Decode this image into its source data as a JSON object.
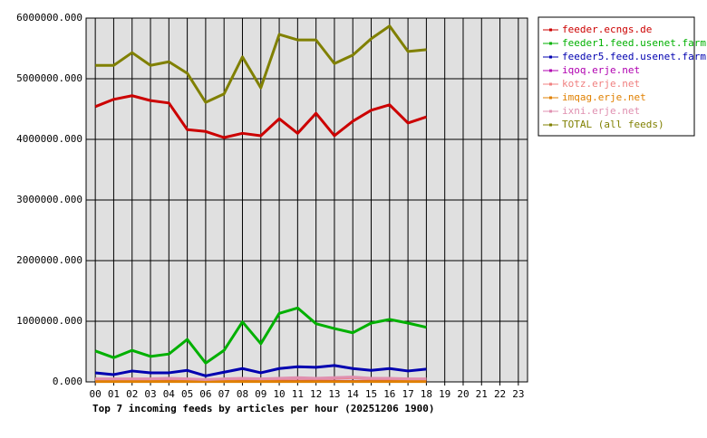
{
  "chart_data": {
    "type": "line",
    "title": "Top 7 incoming feeds by articles per hour (20251206 1900)",
    "categories": [
      "00",
      "01",
      "02",
      "03",
      "04",
      "05",
      "06",
      "07",
      "08",
      "09",
      "10",
      "11",
      "12",
      "13",
      "14",
      "15",
      "16",
      "17",
      "18",
      "19",
      "20",
      "21",
      "22",
      "23"
    ],
    "ylim": [
      0,
      6000000
    ],
    "yticks": [
      {
        "value": 0,
        "label": "0.000"
      },
      {
        "value": 1000000,
        "label": "1000000.000"
      },
      {
        "value": 2000000,
        "label": "2000000.000"
      },
      {
        "value": 3000000,
        "label": "3000000.000"
      },
      {
        "value": 4000000,
        "label": "4000000.000"
      },
      {
        "value": 5000000,
        "label": "5000000.000"
      },
      {
        "value": 6000000,
        "label": "6000000.000"
      }
    ],
    "grid": true,
    "legend": "right",
    "series": [
      {
        "name": "feeder.ecngs.de",
        "color": "#cc0000",
        "values": [
          4540000,
          4660000,
          4720000,
          4640000,
          4600000,
          4160000,
          4130000,
          4030000,
          4100000,
          4060000,
          4340000,
          4100000,
          4430000,
          4060000,
          4300000,
          4480000,
          4570000,
          4270000,
          4370000,
          null,
          null,
          null,
          null,
          null
        ]
      },
      {
        "name": "feeder1.feed.usenet.farm",
        "color": "#00b000",
        "values": [
          510000,
          400000,
          520000,
          420000,
          460000,
          700000,
          310000,
          520000,
          990000,
          630000,
          1130000,
          1220000,
          960000,
          880000,
          810000,
          970000,
          1030000,
          970000,
          900000,
          null,
          null,
          null,
          null,
          null
        ]
      },
      {
        "name": "feeder5.feed.usenet.farm",
        "color": "#0000b0",
        "values": [
          150000,
          120000,
          180000,
          150000,
          150000,
          190000,
          100000,
          160000,
          220000,
          150000,
          220000,
          250000,
          240000,
          270000,
          220000,
          190000,
          220000,
          180000,
          210000,
          null,
          null,
          null,
          null,
          null
        ]
      },
      {
        "name": "iqoq.erje.net",
        "color": "#b000b0",
        "values": [
          10000,
          10000,
          10000,
          10000,
          10000,
          10000,
          10000,
          10000,
          10000,
          10000,
          10000,
          10000,
          10000,
          10000,
          10000,
          10000,
          10000,
          10000,
          10000,
          null,
          null,
          null,
          null,
          null
        ]
      },
      {
        "name": "kotz.erje.net",
        "color": "#f08080",
        "values": [
          40000,
          40000,
          40000,
          40000,
          50000,
          40000,
          30000,
          40000,
          50000,
          40000,
          50000,
          60000,
          50000,
          60000,
          70000,
          50000,
          50000,
          40000,
          40000,
          null,
          null,
          null,
          null,
          null
        ]
      },
      {
        "name": "imqag.erje.net",
        "color": "#e08000",
        "values": [
          5000,
          5000,
          5000,
          5000,
          5000,
          5000,
          5000,
          5000,
          5000,
          5000,
          5000,
          5000,
          5000,
          5000,
          5000,
          5000,
          5000,
          5000,
          5000,
          null,
          null,
          null,
          null,
          null
        ]
      },
      {
        "name": "ixni.erje.net",
        "color": "#e090b0",
        "values": [
          50000,
          50000,
          50000,
          50000,
          60000,
          50000,
          40000,
          50000,
          60000,
          50000,
          60000,
          70000,
          60000,
          70000,
          80000,
          60000,
          60000,
          50000,
          50000,
          null,
          null,
          null,
          null,
          null
        ]
      },
      {
        "name": "TOTAL (all feeds)",
        "color": "#808000",
        "values": [
          5220000,
          5220000,
          5430000,
          5220000,
          5280000,
          5090000,
          4610000,
          4750000,
          5360000,
          4850000,
          5730000,
          5640000,
          5640000,
          5250000,
          5390000,
          5660000,
          5870000,
          5450000,
          5480000,
          null,
          null,
          null,
          null,
          null
        ]
      }
    ]
  }
}
